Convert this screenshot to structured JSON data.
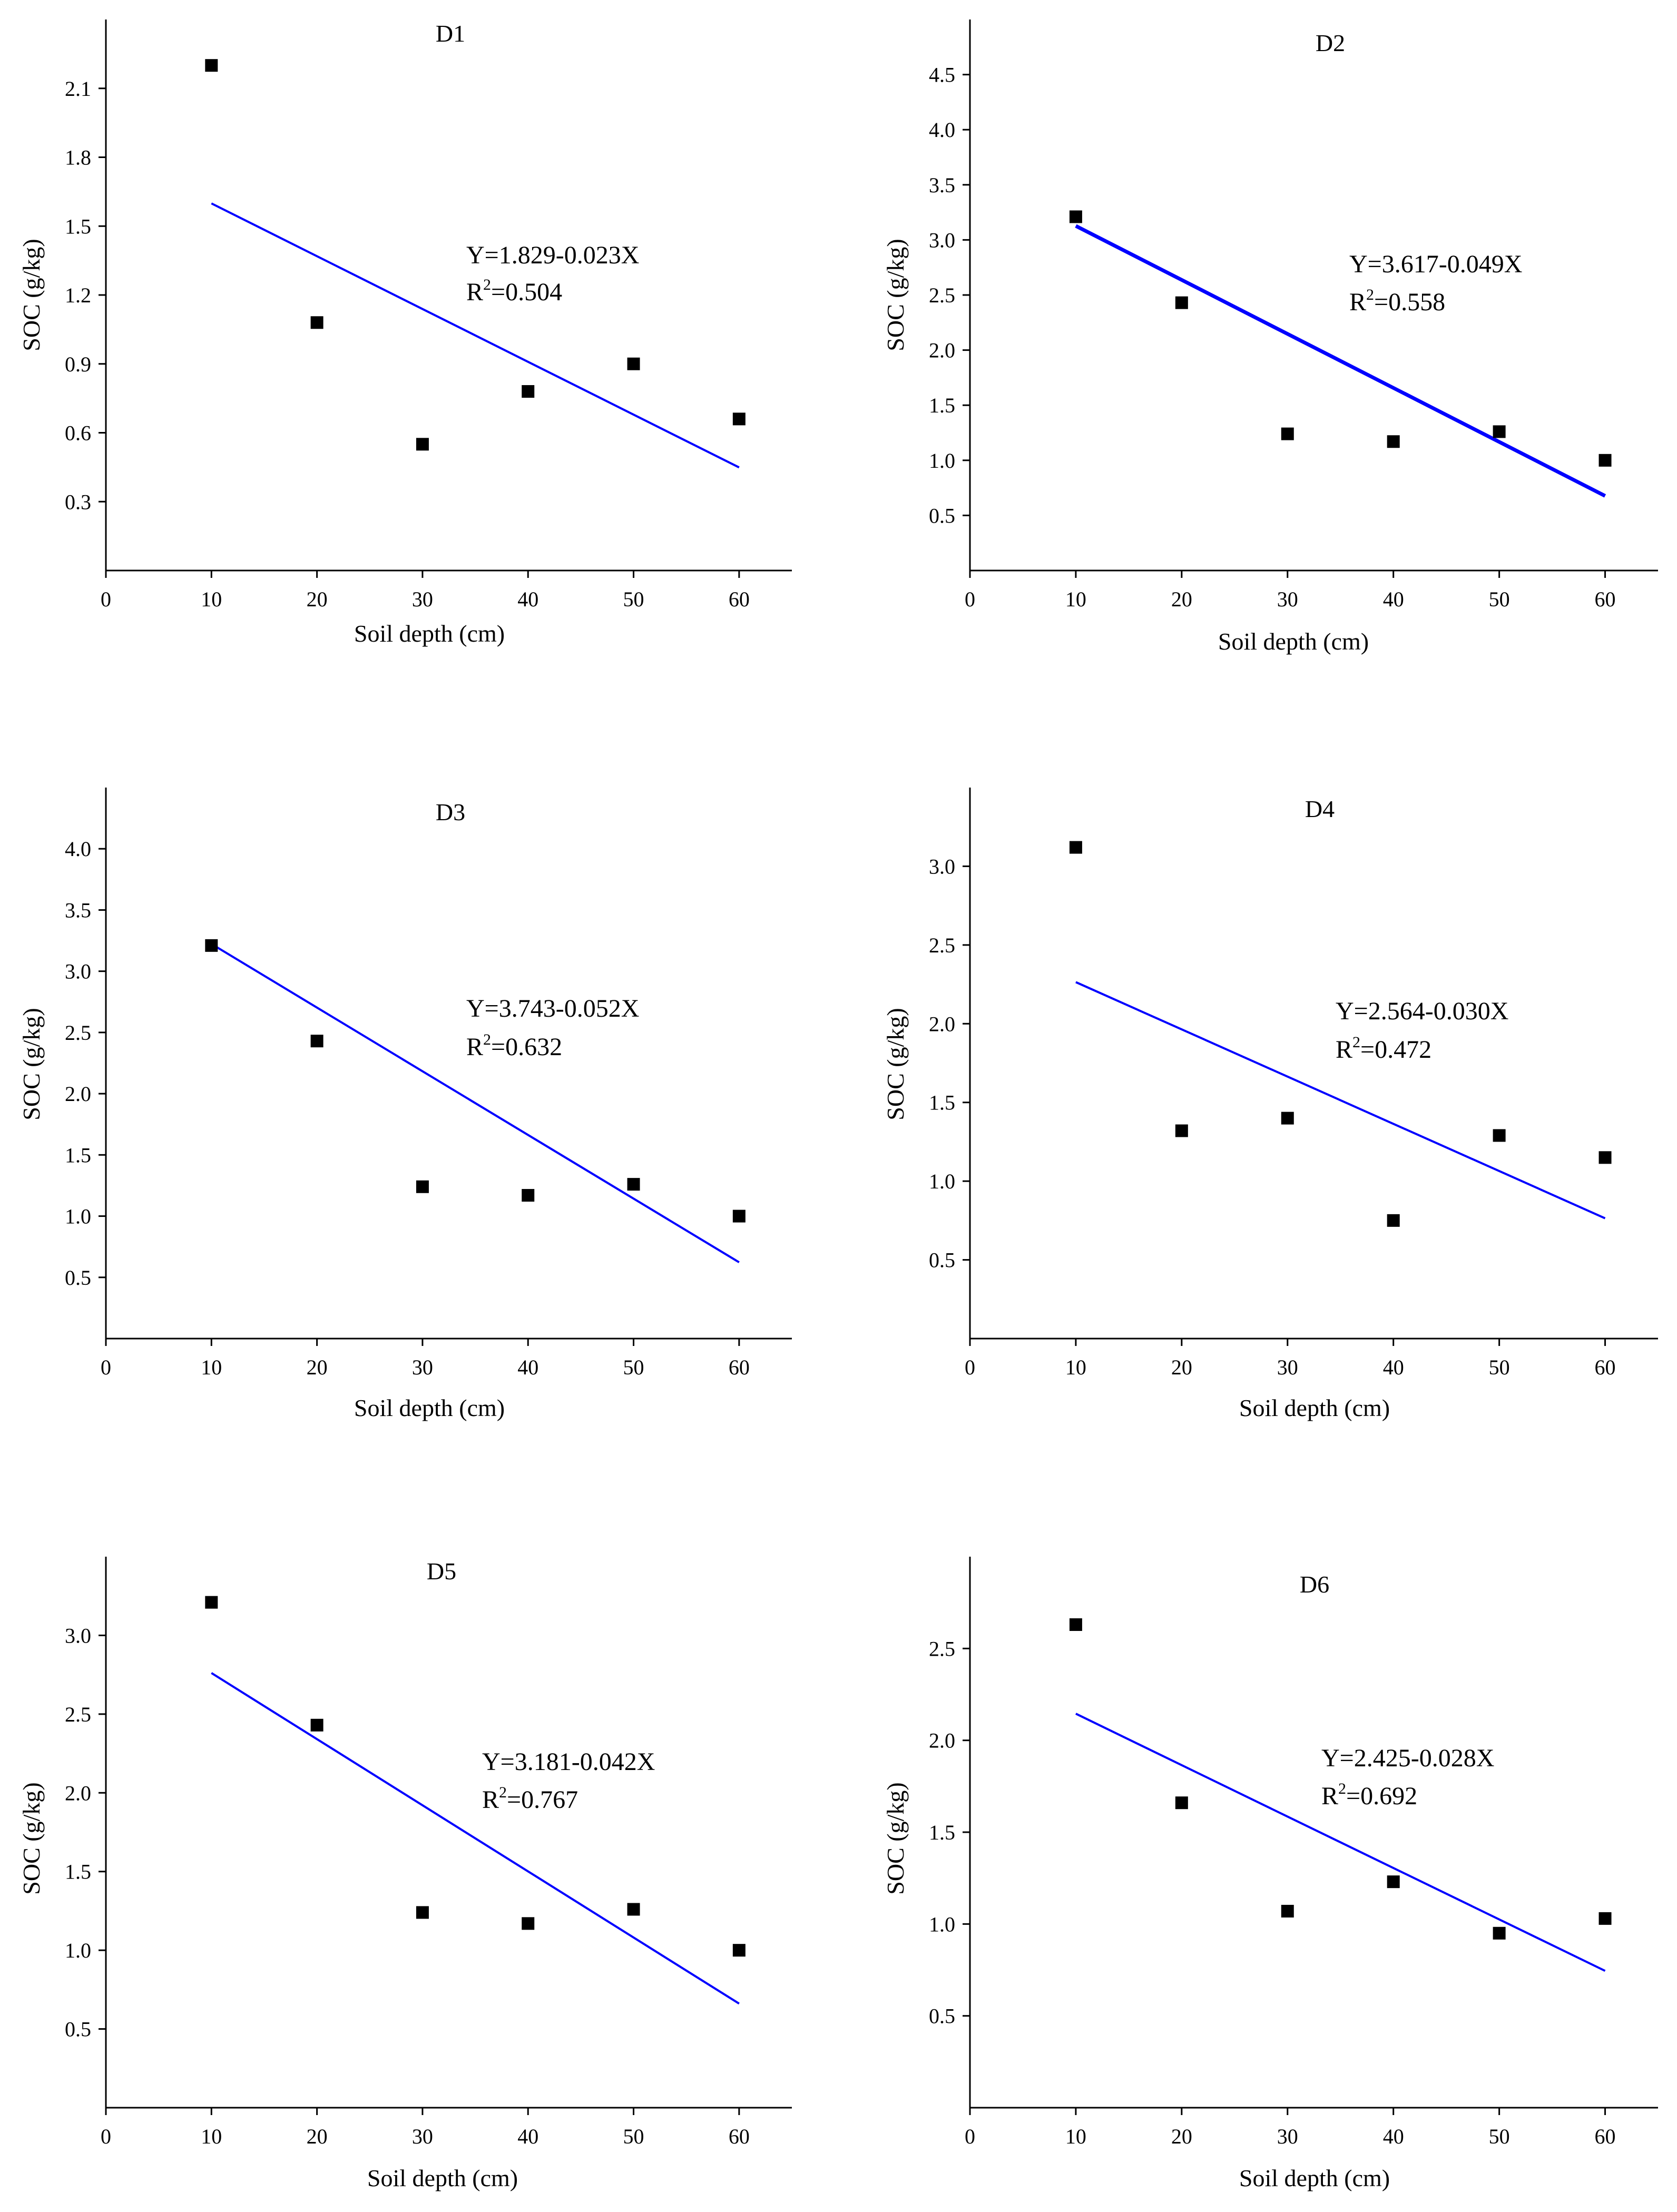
{
  "colors": {
    "marker": "#000000",
    "fit_line": "#0000ff",
    "axis": "#000000",
    "background": "#ffffff"
  },
  "chart_data": [
    {
      "type": "scatter",
      "title": "D1",
      "xlabel": "Soil depth (cm)",
      "ylabel": "SOC (g/kg)",
      "x": [
        10,
        20,
        30,
        40,
        50,
        60
      ],
      "y": [
        2.2,
        1.08,
        0.55,
        0.78,
        0.9,
        0.66
      ],
      "xlim": [
        0,
        65
      ],
      "ylim": [
        0,
        2.4
      ],
      "xticks": [
        0,
        10,
        20,
        30,
        40,
        50,
        60
      ],
      "yticks": [
        0.3,
        0.6,
        0.9,
        1.2,
        1.5,
        1.8,
        2.1
      ],
      "ytick_labels": [
        "0.3",
        "0.6",
        "0.9",
        "1.2",
        "1.5",
        "1.8",
        "2.1"
      ],
      "fit": {
        "intercept": 1.829,
        "slope": -0.023,
        "x_range": [
          10,
          60
        ]
      },
      "equation": "Y=1.829-0.023X",
      "r2_label": "R",
      "r2_sup": "2",
      "r2_value": "=0.504",
      "grid": false
    },
    {
      "type": "scatter",
      "title": "D2",
      "xlabel": "Soil depth (cm)",
      "ylabel": "SOC (g/kg)",
      "x": [
        10,
        20,
        30,
        40,
        50,
        60
      ],
      "y": [
        3.21,
        2.43,
        1.24,
        1.17,
        1.26,
        1.0
      ],
      "xlim": [
        0,
        65
      ],
      "ylim": [
        0,
        5.0
      ],
      "xticks": [
        0,
        10,
        20,
        30,
        40,
        50,
        60
      ],
      "yticks": [
        0.5,
        1.0,
        1.5,
        2.0,
        2.5,
        3.0,
        3.5,
        4.0,
        4.5
      ],
      "ytick_labels": [
        "0.5",
        "1.0",
        "1.5",
        "2.0",
        "2.5",
        "3.0",
        "3.5",
        "4.0",
        "4.5"
      ],
      "fit": {
        "intercept": 3.617,
        "slope": -0.049,
        "x_range": [
          10,
          60
        ]
      },
      "equation": "Y=3.617-0.049X",
      "r2_label": "R",
      "r2_sup": "2",
      "r2_value": "=0.558",
      "grid": false
    },
    {
      "type": "scatter",
      "title": "D3",
      "xlabel": "Soil depth (cm)",
      "ylabel": "SOC (g/kg)",
      "x": [
        10,
        20,
        30,
        40,
        50,
        60
      ],
      "y": [
        3.21,
        2.43,
        1.24,
        1.17,
        1.26,
        1.0
      ],
      "xlim": [
        0,
        65
      ],
      "ylim": [
        0,
        4.5
      ],
      "xticks": [
        0,
        10,
        20,
        30,
        40,
        50,
        60
      ],
      "yticks": [
        0.5,
        1.0,
        1.5,
        2.0,
        2.5,
        3.0,
        3.5,
        4.0
      ],
      "ytick_labels": [
        "0.5",
        "1.0",
        "1.5",
        "2.0",
        "2.5",
        "3.0",
        "3.5",
        "4.0"
      ],
      "fit": {
        "intercept": 3.743,
        "slope": -0.052,
        "x_range": [
          10,
          60
        ]
      },
      "equation": "Y=3.743-0.052X",
      "r2_label": "R",
      "r2_sup": "2",
      "r2_value": "=0.632",
      "grid": false
    },
    {
      "type": "scatter",
      "title": "D4",
      "xlabel": "Soil depth (cm)",
      "ylabel": "SOC (g/kg)",
      "x": [
        10,
        20,
        30,
        40,
        50,
        60
      ],
      "y": [
        3.12,
        1.32,
        1.4,
        0.75,
        1.29,
        1.15
      ],
      "xlim": [
        0,
        65
      ],
      "ylim": [
        0,
        3.5
      ],
      "xticks": [
        0,
        10,
        20,
        30,
        40,
        50,
        60
      ],
      "yticks": [
        0.5,
        1.0,
        1.5,
        2.0,
        2.5,
        3.0
      ],
      "ytick_labels": [
        "0.5",
        "1.0",
        "1.5",
        "2.0",
        "2.5",
        "3.0"
      ],
      "fit": {
        "intercept": 2.564,
        "slope": -0.03,
        "x_range": [
          10,
          60
        ]
      },
      "equation": "Y=2.564-0.030X",
      "r2_label": "R",
      "r2_sup": "2",
      "r2_value": "=0.472",
      "grid": false
    },
    {
      "type": "scatter",
      "title": "D5",
      "xlabel": "Soil depth (cm)",
      "ylabel": "SOC (g/kg)",
      "x": [
        10,
        20,
        30,
        40,
        50,
        60
      ],
      "y": [
        3.21,
        2.43,
        1.24,
        1.17,
        1.26,
        1.0
      ],
      "xlim": [
        0,
        65
      ],
      "ylim": [
        0,
        3.5
      ],
      "xticks": [
        0,
        10,
        20,
        30,
        40,
        50,
        60
      ],
      "yticks": [
        0.5,
        1.0,
        1.5,
        2.0,
        2.5,
        3.0
      ],
      "ytick_labels": [
        "0.5",
        "1.0",
        "1.5",
        "2.0",
        "2.5",
        "3.0"
      ],
      "fit": {
        "intercept": 3.181,
        "slope": -0.042,
        "x_range": [
          10,
          60
        ]
      },
      "equation": "Y=3.181-0.042X",
      "r2_label": "R",
      "r2_sup": "2",
      "r2_value": "=0.767",
      "grid": false
    },
    {
      "type": "scatter",
      "title": "D6",
      "xlabel": "Soil depth (cm)",
      "ylabel": "SOC (g/kg)",
      "x": [
        10,
        20,
        30,
        40,
        50,
        60
      ],
      "y": [
        2.63,
        1.66,
        1.07,
        1.23,
        0.95,
        1.03
      ],
      "xlim": [
        0,
        65
      ],
      "ylim": [
        0,
        3.0
      ],
      "xticks": [
        0,
        10,
        20,
        30,
        40,
        50,
        60
      ],
      "yticks": [
        0.5,
        1.0,
        1.5,
        2.0,
        2.5
      ],
      "ytick_labels": [
        "0.5",
        "1.0",
        "1.5",
        "2.0",
        "2.5"
      ],
      "fit": {
        "intercept": 2.425,
        "slope": -0.028,
        "x_range": [
          10,
          60
        ]
      },
      "equation": "Y=2.425-0.028X",
      "r2_label": "R",
      "r2_sup": "2",
      "r2_value": "=0.692",
      "grid": false
    }
  ]
}
